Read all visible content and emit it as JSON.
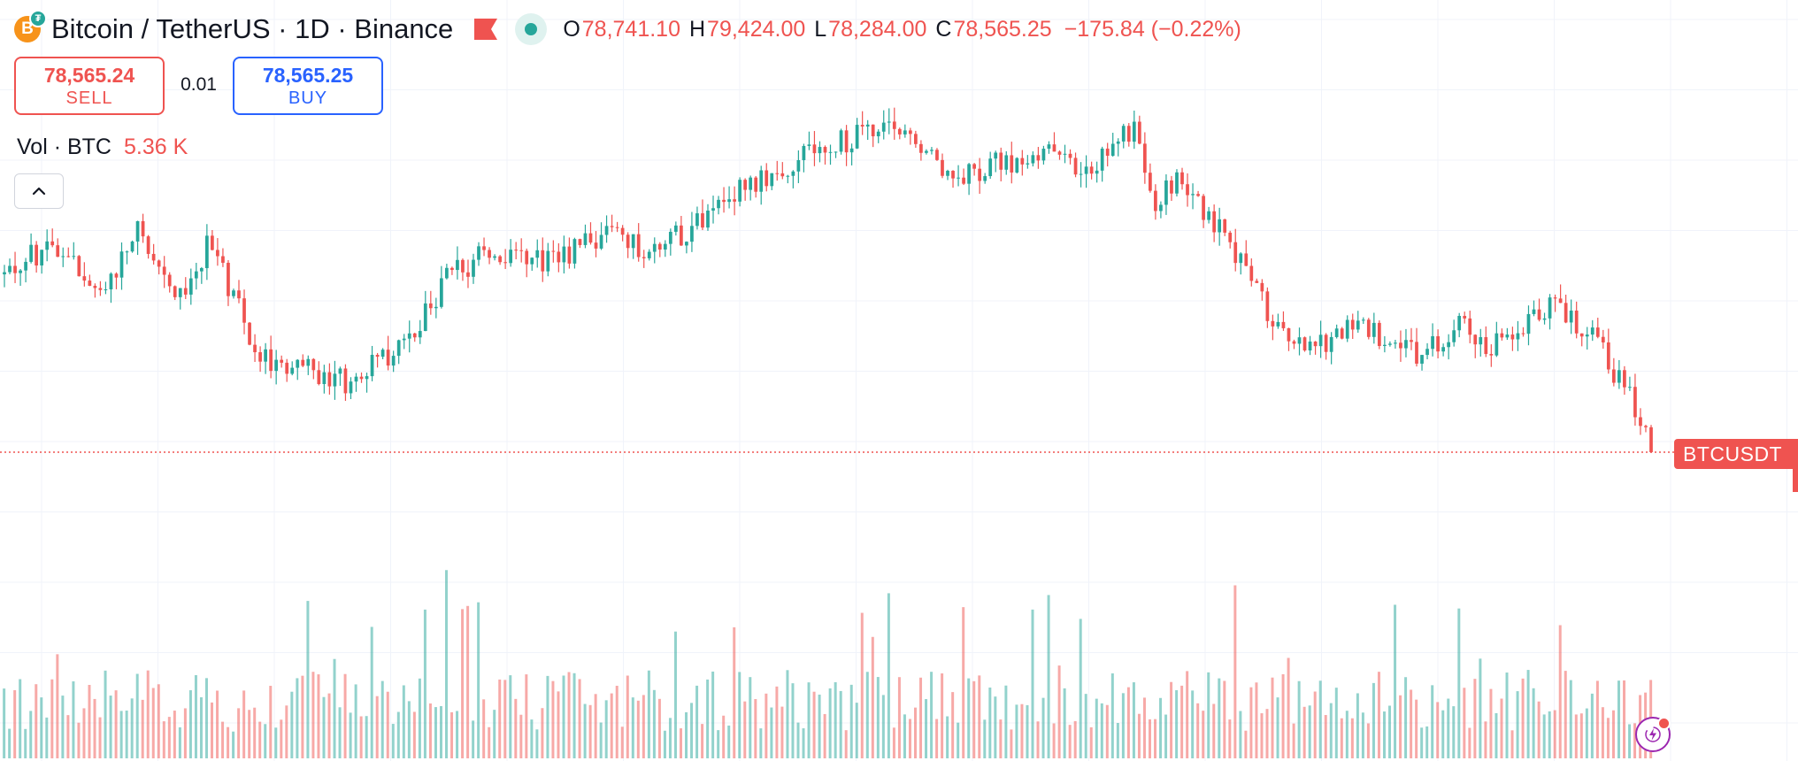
{
  "header": {
    "symbol_title": "Bitcoin / TetherUS · 1D · Binance",
    "coin_glyph": "B",
    "coin_sub_glyph": "₮",
    "coin_icon": "bitcoin-icon",
    "flag_icon": "flag-icon",
    "live_icon": "market-open-dot-icon",
    "ohlc": {
      "open_label": "O",
      "open": "78,741.10",
      "high_label": "H",
      "high": "79,424.00",
      "low_label": "L",
      "low": "78,284.00",
      "close_label": "C",
      "close": "78,565.25",
      "change": "−175.84 (−0.22%)"
    }
  },
  "trade": {
    "sell_price": "78,565.24",
    "sell_label": "SELL",
    "spread": "0.01",
    "buy_price": "78,565.25",
    "buy_label": "BUY"
  },
  "volume_legend": {
    "label": "Vol · BTC",
    "value": "5.36 K"
  },
  "collapse_icon": "chevron-up-icon",
  "price_tag": "BTCUSDT",
  "fab_icon": "lightning-icon",
  "colors": {
    "up": "#26a69a",
    "down": "#ef5350",
    "grid": "#f0f3fa",
    "sell": "#ef5350",
    "buy": "#2962ff",
    "fab": "#9c27b0"
  },
  "chart_data": {
    "type": "candlestick",
    "timeframe": "1D",
    "last_price": 78565.25,
    "last_volume_btc": 5360,
    "price_trend_anchors": [
      [
        0,
        100000
      ],
      [
        50,
        104000
      ],
      [
        90,
        97000
      ],
      [
        115,
        102000
      ],
      [
        130,
        105000
      ],
      [
        155,
        101000
      ],
      [
        170,
        97000
      ],
      [
        200,
        104000
      ],
      [
        250,
        90000
      ],
      [
        330,
        87000
      ],
      [
        390,
        91500
      ],
      [
        430,
        99500
      ],
      [
        470,
        102500
      ],
      [
        540,
        101500
      ],
      [
        600,
        106000
      ],
      [
        620,
        102000
      ],
      [
        660,
        105000
      ],
      [
        720,
        110500
      ],
      [
        780,
        114500
      ],
      [
        850,
        117500
      ],
      [
        900,
        116000
      ],
      [
        920,
        112000
      ],
      [
        960,
        113000
      ],
      [
        1010,
        114500
      ],
      [
        1060,
        113000
      ],
      [
        1100,
        118000
      ],
      [
        1120,
        109000
      ],
      [
        1150,
        111500
      ],
      [
        1180,
        106000
      ],
      [
        1210,
        100500
      ],
      [
        1240,
        93500
      ],
      [
        1280,
        91000
      ],
      [
        1320,
        94000
      ],
      [
        1380,
        90500
      ],
      [
        1420,
        94500
      ],
      [
        1440,
        92000
      ],
      [
        1460,
        91500
      ],
      [
        1480,
        93500
      ],
      [
        1510,
        97000
      ],
      [
        1530,
        94500
      ],
      [
        1550,
        92500
      ],
      [
        1570,
        88000
      ],
      [
        1590,
        84000
      ],
      [
        1605,
        78565
      ]
    ]
  }
}
